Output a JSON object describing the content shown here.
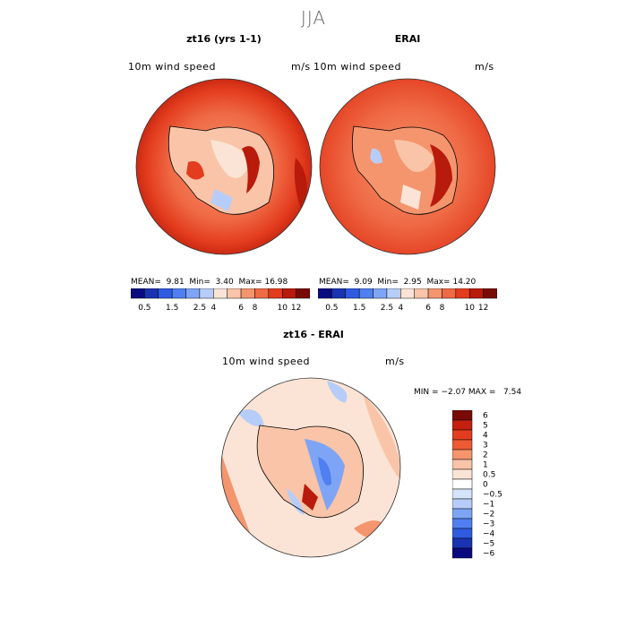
{
  "season": "JJA",
  "panels": [
    {
      "title": "zt16 (yrs 1-1)",
      "variable": "10m wind speed",
      "units": "m/s",
      "mean_label": "MEAN=",
      "mean": "9.81",
      "min_label": "Min=",
      "min": "3.40",
      "max_label": "Max=",
      "max": "16.98"
    },
    {
      "title": "ERAI",
      "variable": "10m wind speed",
      "units": "m/s",
      "mean_label": "MEAN=",
      "mean": "9.09",
      "min_label": "Min=",
      "min": "2.95",
      "max_label": "Max=",
      "max": "14.20"
    }
  ],
  "diff_panel": {
    "title": "zt16 - ERAI",
    "variable": "10m wind speed",
    "units": "m/s",
    "min_label": "MIN =",
    "min": "−2.07",
    "max_label": "MAX =",
    "max": "7.54"
  },
  "colorbar_top": {
    "colors": [
      "#0a0a80",
      "#1a33b3",
      "#2f5be0",
      "#4f7ff0",
      "#7ea5f5",
      "#b7cdf9",
      "#fbe4d6",
      "#f9c4a8",
      "#f4956e",
      "#ef6a45",
      "#e33c1e",
      "#b81b0b",
      "#7a0a05"
    ],
    "tick_labels": [
      "0.5",
      "1.5",
      "2.5",
      "4",
      "6",
      "8",
      "10",
      "12"
    ]
  },
  "colorbar_diff": {
    "colors_top_to_bottom": [
      "#7a0a05",
      "#c4200d",
      "#e33c1e",
      "#ef5a33",
      "#f4956e",
      "#f9c4a8",
      "#fbe4d6",
      "#ffffff",
      "#d6e4fb",
      "#b7cdf9",
      "#7ea5f5",
      "#4f7ff0",
      "#2f5be0",
      "#1a33b3",
      "#0a0a80"
    ],
    "tick_labels": [
      "6",
      "5",
      "4",
      "3",
      "2",
      "1",
      "0.5",
      "0",
      "−0.5",
      "−1",
      "−2",
      "−3",
      "−4",
      "−5",
      "−6"
    ]
  }
}
